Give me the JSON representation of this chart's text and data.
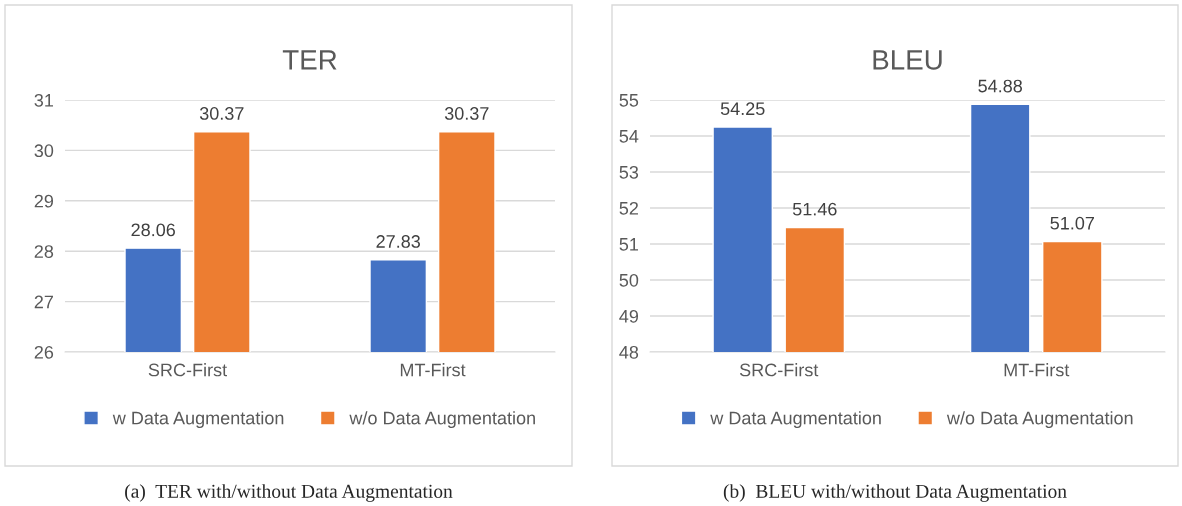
{
  "chart_data": [
    {
      "type": "bar",
      "title": "TER",
      "categories": [
        "SRC-First",
        "MT-First"
      ],
      "series": [
        {
          "name": "w Data Augmentation",
          "color": "#4472c4",
          "values": [
            28.06,
            27.83
          ]
        },
        {
          "name": "w/o Data Augmentation",
          "color": "#ed7d31",
          "values": [
            30.37,
            30.37
          ]
        }
      ],
      "ylim": [
        26,
        31
      ],
      "yticks": [
        26,
        27,
        28,
        29,
        30,
        31
      ],
      "grid": "y",
      "legend": "bottom",
      "data_labels": true,
      "annotations": [
        "(a)  TER with/without Data Augmentation"
      ]
    },
    {
      "type": "bar",
      "title": "BLEU",
      "categories": [
        "SRC-First",
        "MT-First"
      ],
      "series": [
        {
          "name": "w Data Augmentation",
          "color": "#4472c4",
          "values": [
            54.25,
            54.88
          ]
        },
        {
          "name": "w/o Data Augmentation",
          "color": "#ed7d31",
          "values": [
            51.46,
            51.07
          ]
        }
      ],
      "ylim": [
        48,
        55
      ],
      "yticks": [
        48,
        49,
        50,
        51,
        52,
        53,
        54,
        55
      ],
      "grid": "y",
      "legend": "bottom",
      "data_labels": true,
      "annotations": [
        "(b)  BLEU with/without Data Augmentation"
      ]
    }
  ]
}
